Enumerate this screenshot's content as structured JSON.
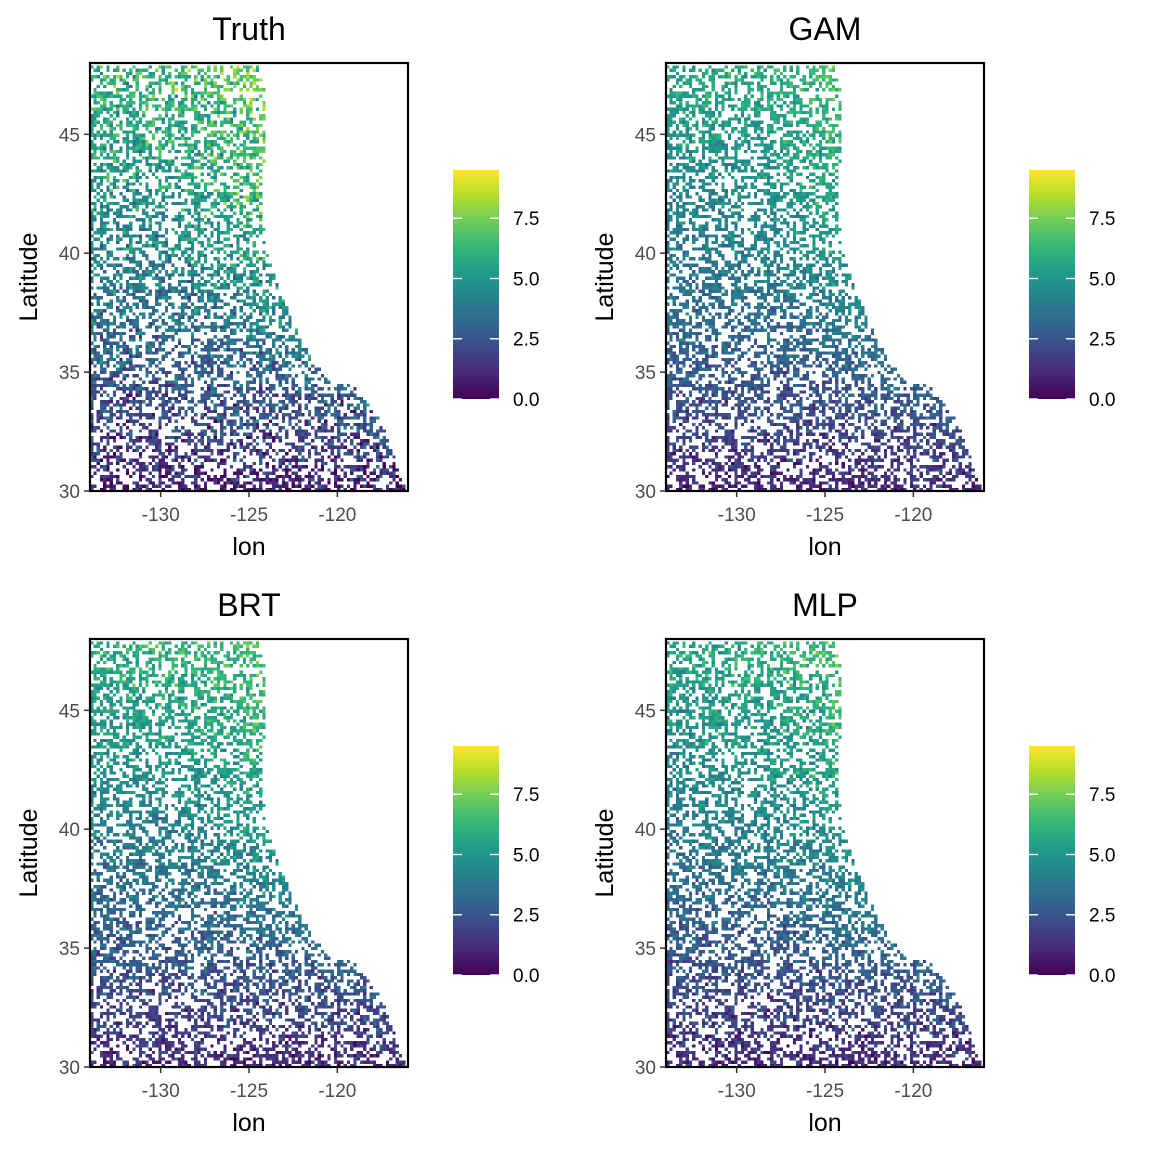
{
  "figure": {
    "color_scale": {
      "name": "viridis",
      "colors": [
        "#440154",
        "#482878",
        "#3E4A89",
        "#31688E",
        "#26828E",
        "#1F9E89",
        "#35B779",
        "#6DCD59",
        "#B4DE2C",
        "#FDE725"
      ],
      "min": 0,
      "max": 9.5
    },
    "na_color": "#ffffff"
  },
  "chart_data": [
    {
      "type": "heatmap",
      "title": "Truth",
      "xlabel": "lon",
      "ylabel": "Latitude",
      "xlim": [
        -134,
        -116
      ],
      "ylim": [
        30,
        48
      ],
      "x_ticks": [
        "-130",
        "-125",
        "-120"
      ],
      "y_ticks": [
        "30",
        "35",
        "40",
        "45"
      ],
      "legend": {
        "ticks": [
          "0.0",
          "2.5",
          "5.0",
          "7.5"
        ],
        "placement": "right"
      },
      "value_trend": {
        "south_mean": 0.8,
        "north_mean": 6.0,
        "coast_bonus": 1.8,
        "noise": 1.6
      }
    },
    {
      "type": "heatmap",
      "title": "GAM",
      "xlabel": "lon",
      "ylabel": "Latitude",
      "xlim": [
        -134,
        -116
      ],
      "ylim": [
        30,
        48
      ],
      "x_ticks": [
        "-130",
        "-125",
        "-120"
      ],
      "y_ticks": [
        "30",
        "35",
        "40",
        "45"
      ],
      "legend": {
        "ticks": [
          "0.0",
          "2.5",
          "5.0",
          "7.5"
        ],
        "placement": "right"
      },
      "value_trend": {
        "south_mean": 1.0,
        "north_mean": 5.5,
        "coast_bonus": 1.3,
        "noise": 1.0
      }
    },
    {
      "type": "heatmap",
      "title": "BRT",
      "xlabel": "lon",
      "ylabel": "Latitude",
      "xlim": [
        -134,
        -116
      ],
      "ylim": [
        30,
        48
      ],
      "x_ticks": [
        "-130",
        "-125",
        "-120"
      ],
      "y_ticks": [
        "30",
        "35",
        "40",
        "45"
      ],
      "legend": {
        "ticks": [
          "0.0",
          "2.5",
          "5.0",
          "7.5"
        ],
        "placement": "right"
      },
      "value_trend": {
        "south_mean": 1.0,
        "north_mean": 5.8,
        "coast_bonus": 1.2,
        "noise": 1.1
      }
    },
    {
      "type": "heatmap",
      "title": "MLP",
      "xlabel": "lon",
      "ylabel": "Latitude",
      "xlim": [
        -134,
        -116
      ],
      "ylim": [
        30,
        48
      ],
      "x_ticks": [
        "-130",
        "-125",
        "-120"
      ],
      "y_ticks": [
        "30",
        "35",
        "40",
        "45"
      ],
      "legend": {
        "ticks": [
          "0.0",
          "2.5",
          "5.0",
          "7.5"
        ],
        "placement": "right"
      },
      "value_trend": {
        "south_mean": 1.0,
        "north_mean": 5.6,
        "coast_bonus": 1.3,
        "noise": 1.1
      }
    }
  ]
}
